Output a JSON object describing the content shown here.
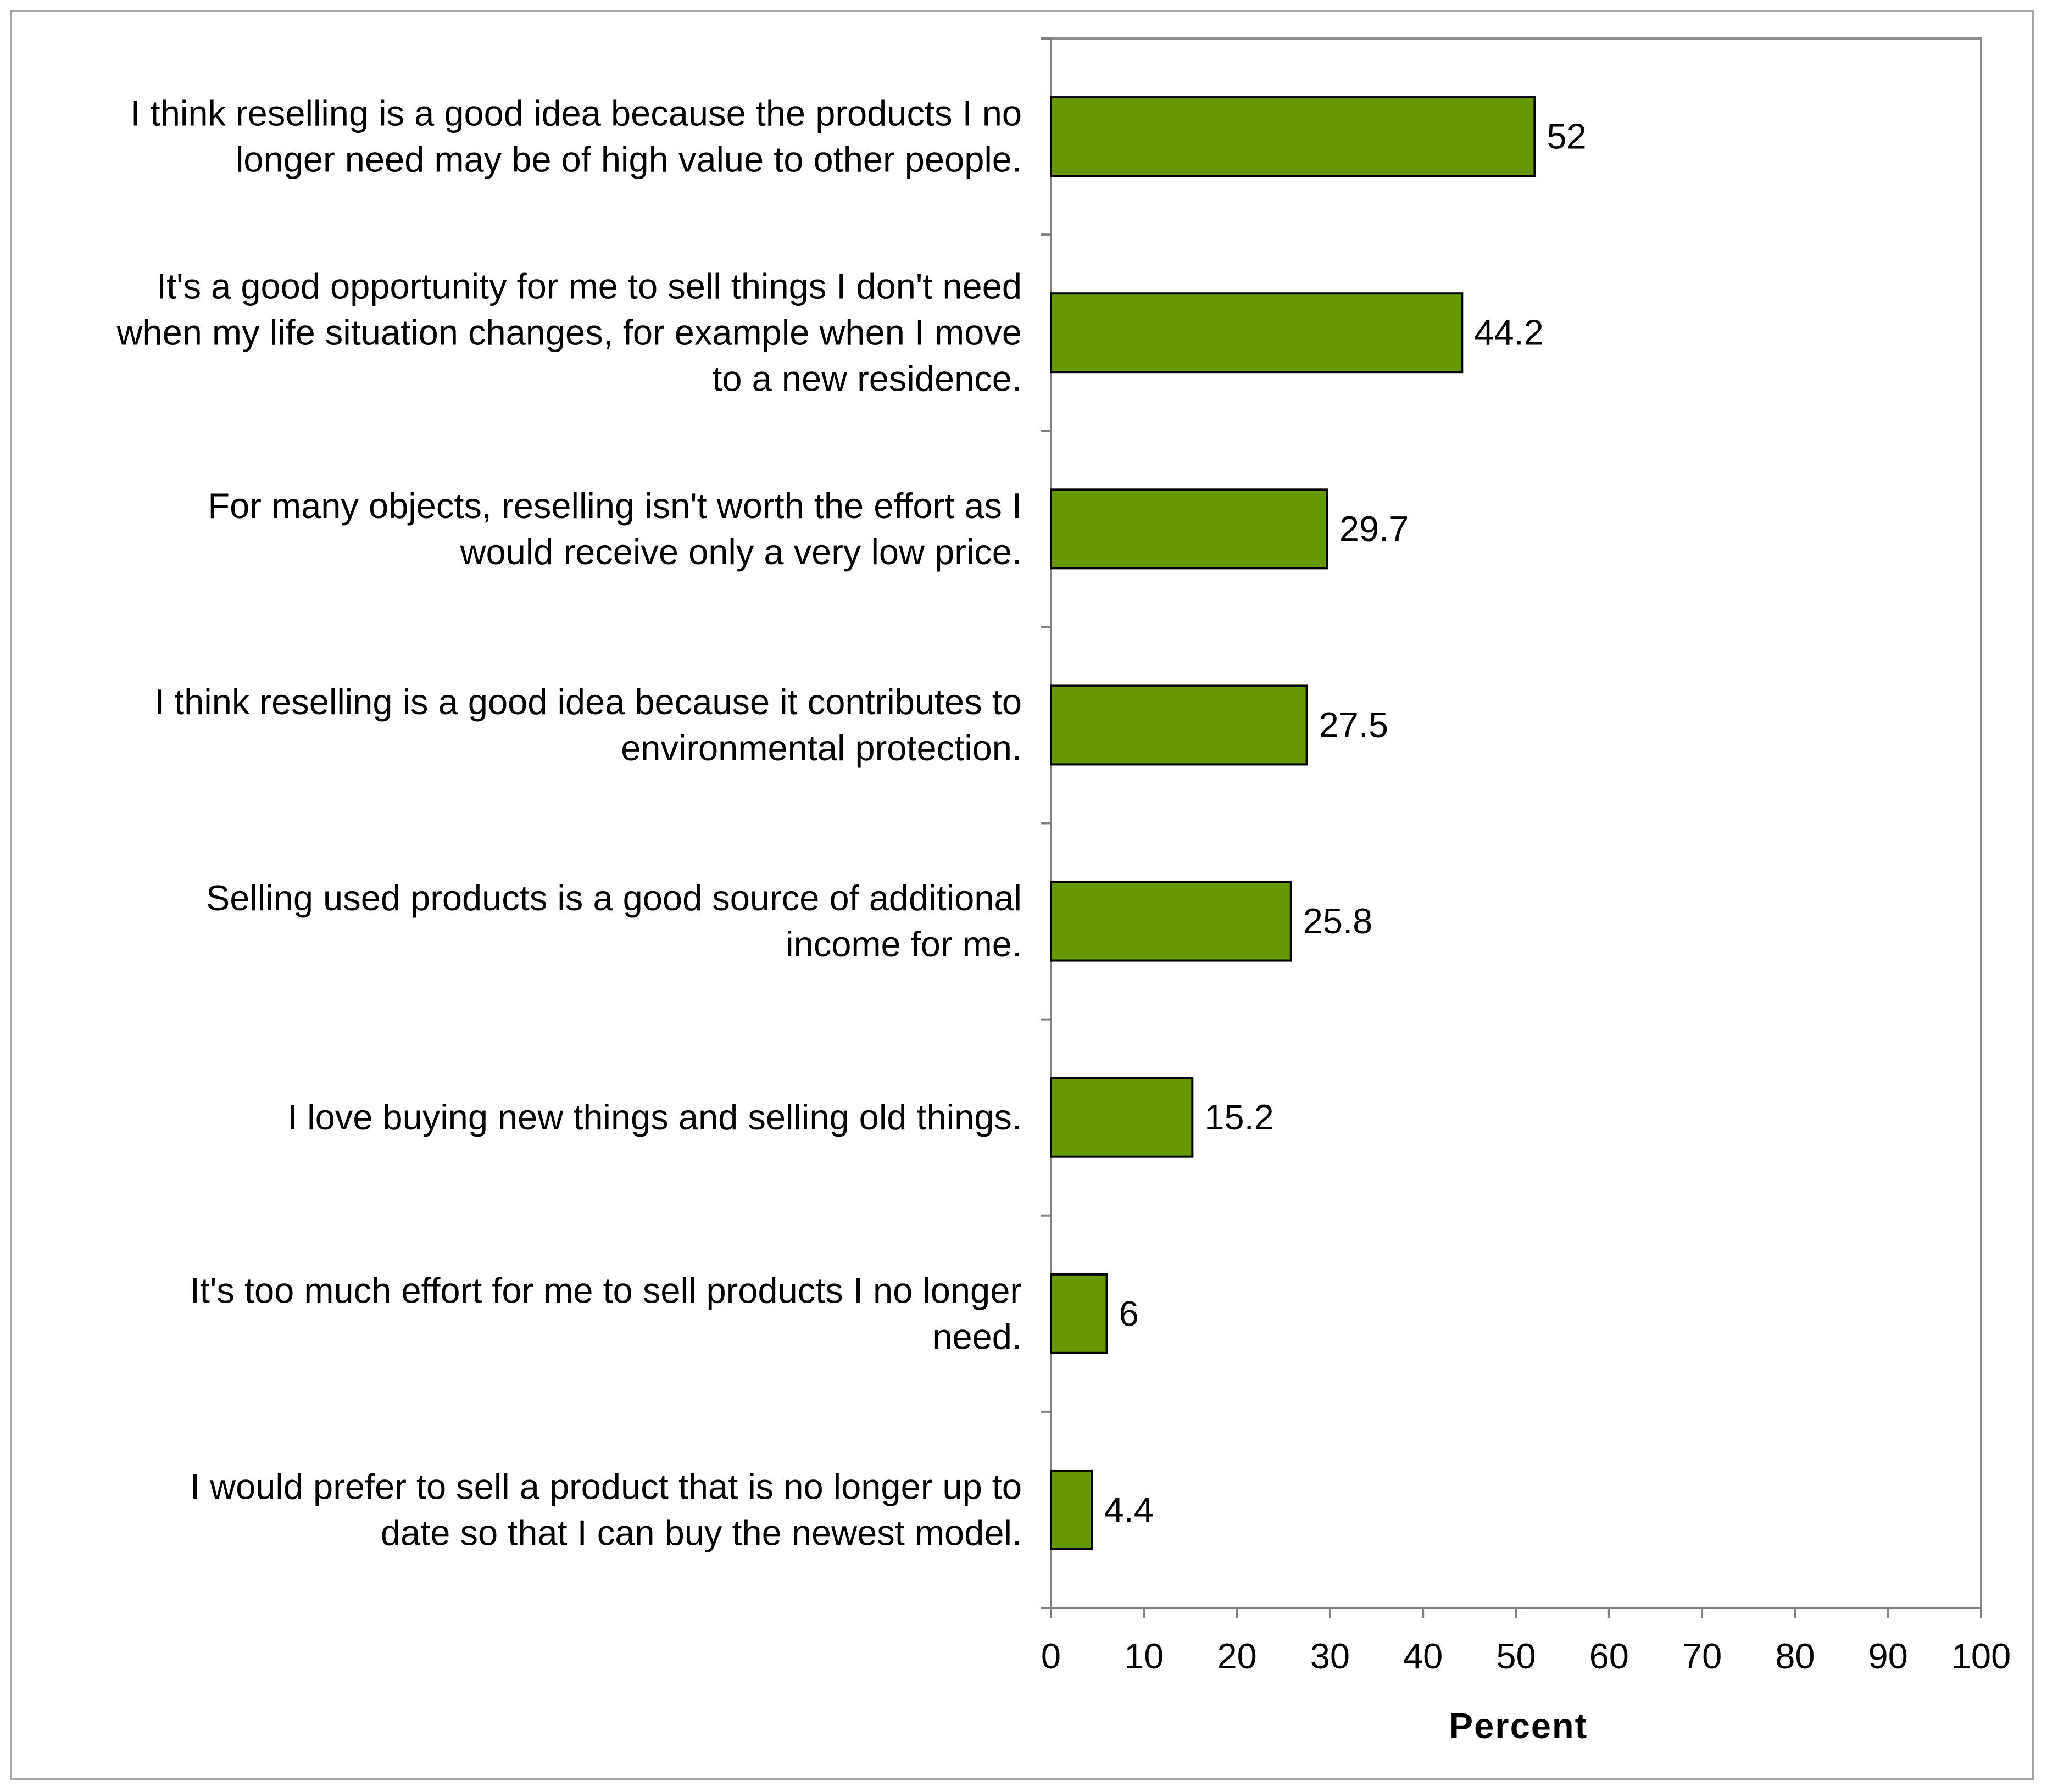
{
  "chart_data": {
    "type": "bar",
    "orientation": "horizontal",
    "title": "",
    "xlabel": "Percent",
    "ylabel": "",
    "xlim": [
      0,
      100
    ],
    "xticks": [
      0,
      10,
      20,
      30,
      40,
      50,
      60,
      70,
      80,
      90,
      100
    ],
    "grid": false,
    "legend": "none",
    "bar_color": "#669900",
    "categories": [
      {
        "lines": [
          "I think reselling is a good idea because the products I no",
          "longer need may be of high value to other people."
        ],
        "value": 52,
        "value_label": "52"
      },
      {
        "lines": [
          "It's a good opportunity for me to sell things I don't need",
          "when my life situation changes, for example when I move",
          "to a new residence."
        ],
        "value": 44.2,
        "value_label": "44.2"
      },
      {
        "lines": [
          "For many objects, reselling isn't worth the effort as I",
          "would receive only a very low price."
        ],
        "value": 29.7,
        "value_label": "29.7"
      },
      {
        "lines": [
          "I think reselling is a good idea because it contributes to",
          "environmental protection."
        ],
        "value": 27.5,
        "value_label": "27.5"
      },
      {
        "lines": [
          "Selling used products is a good source of additional",
          "income for me."
        ],
        "value": 25.8,
        "value_label": "25.8"
      },
      {
        "lines": [
          "I love buying new things and selling old things."
        ],
        "value": 15.2,
        "value_label": "15.2"
      },
      {
        "lines": [
          "It's too much effort for me to sell products I no longer",
          "need."
        ],
        "value": 6,
        "value_label": "6"
      },
      {
        "lines": [
          "I would prefer to sell a product that is no longer up to",
          "date so that I can buy the newest model."
        ],
        "value": 4.4,
        "value_label": "4.4"
      }
    ]
  }
}
